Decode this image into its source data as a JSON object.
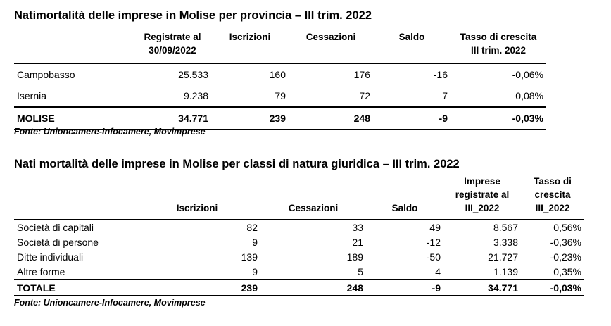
{
  "table1": {
    "title": "Natimortalità delle imprese in Molise per provincia – III trim. 2022",
    "headers": {
      "registrate_l1": "Registrate al",
      "registrate_l2": "30/09/2022",
      "iscrizioni": "Iscrizioni",
      "cessazioni": "Cessazioni",
      "saldo": "Saldo",
      "tasso_l1": "Tasso di crescita",
      "tasso_l2": "III trim. 2022"
    },
    "rows": [
      {
        "name": "Campobasso",
        "registrate": "25.533",
        "iscrizioni": "160",
        "cessazioni": "176",
        "saldo": "-16",
        "tasso": "-0,06%"
      },
      {
        "name": "Isernia",
        "registrate": "9.238",
        "iscrizioni": "79",
        "cessazioni": "72",
        "saldo": "7",
        "tasso": "0,08%"
      }
    ],
    "total": {
      "name": "MOLISE",
      "registrate": "34.771",
      "iscrizioni": "239",
      "cessazioni": "248",
      "saldo": "-9",
      "tasso": "-0,03%"
    },
    "source": "Fonte: Unioncamere-Infocamere, Movimprese"
  },
  "table2": {
    "title": "Nati mortalità delle imprese in Molise per classi di natura giuridica – III trim. 2022",
    "headers": {
      "iscrizioni": "Iscrizioni",
      "cessazioni": "Cessazioni",
      "saldo": "Saldo",
      "imprese_l1": "Imprese",
      "imprese_l2": "registrate al",
      "imprese_l3": "III_2022",
      "tasso_l1": "Tasso di",
      "tasso_l2": "crescita",
      "tasso_l3": "III_2022"
    },
    "rows": [
      {
        "name": "Società di capitali",
        "iscrizioni": "82",
        "cessazioni": "33",
        "saldo": "49",
        "imprese": "8.567",
        "tasso": "0,56%"
      },
      {
        "name": "Società di persone",
        "iscrizioni": "9",
        "cessazioni": "21",
        "saldo": "-12",
        "imprese": "3.338",
        "tasso": "-0,36%"
      },
      {
        "name": "Ditte individuali",
        "iscrizioni": "139",
        "cessazioni": "189",
        "saldo": "-50",
        "imprese": "21.727",
        "tasso": "-0,23%"
      },
      {
        "name": "Altre forme",
        "iscrizioni": "9",
        "cessazioni": "5",
        "saldo": "4",
        "imprese": "1.139",
        "tasso": "0,35%"
      }
    ],
    "total": {
      "name": "TOTALE",
      "iscrizioni": "239",
      "cessazioni": "248",
      "saldo": "-9",
      "imprese": "34.771",
      "tasso": "-0,03%"
    },
    "source": "Fonte: Unioncamere-Infocamere, Movimprese"
  }
}
